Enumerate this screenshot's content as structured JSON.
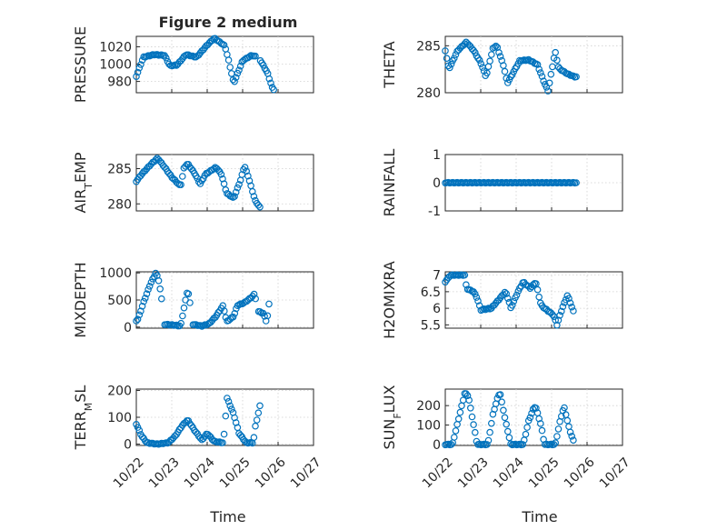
{
  "figure": {
    "title": "Figure 2 medium",
    "marker_color": "#0072bd",
    "marker": "open-circle"
  },
  "chart_data": [
    {
      "type": "scatter",
      "panel": "pressure",
      "title": "Figure 2 medium",
      "ylabel": "PRESSURE",
      "ylabel_parts": [
        {
          "t": "PRESSURE"
        }
      ],
      "ylim": [
        967,
        1032
      ],
      "yticks": [
        980,
        1000,
        1020
      ],
      "yticklabels": [
        "980",
        "1000",
        "1020"
      ],
      "xlim": [
        0,
        5
      ],
      "grid": true,
      "key": [
        [
          0,
          986
        ],
        [
          0.2,
          1008
        ],
        [
          0.5,
          1011
        ],
        [
          0.8,
          1010
        ],
        [
          0.95,
          998
        ],
        [
          1.15,
          999
        ],
        [
          1.4,
          1011
        ],
        [
          1.7,
          1008
        ],
        [
          2.0,
          1022
        ],
        [
          2.2,
          1030
        ],
        [
          2.5,
          1021
        ],
        [
          2.6,
          1005
        ],
        [
          2.75,
          978
        ],
        [
          3.0,
          1004
        ],
        [
          3.25,
          1010
        ],
        [
          3.45,
          1008
        ],
        [
          3.7,
          990
        ],
        [
          3.85,
          971
        ]
      ],
      "segments": [
        [
          0,
          3.4
        ],
        [
          3.5,
          3.9
        ]
      ],
      "step": 0.042,
      "x": [],
      "y": []
    },
    {
      "type": "scatter",
      "panel": "theta",
      "ylabel": "THETA",
      "ylabel_parts": [
        {
          "t": "THETA"
        }
      ],
      "ylim": [
        280,
        286
      ],
      "yticks": [
        280,
        285
      ],
      "yticklabels": [
        "280",
        "285"
      ],
      "xlim": [
        0,
        5
      ],
      "grid": true,
      "key": [
        [
          0,
          284.5
        ],
        [
          0.1,
          282.5
        ],
        [
          0.35,
          284.5
        ],
        [
          0.6,
          285.4
        ],
        [
          0.8,
          284.5
        ],
        [
          1.0,
          283.2
        ],
        [
          1.15,
          281.7
        ],
        [
          1.35,
          284.8
        ],
        [
          1.45,
          285
        ],
        [
          1.65,
          282.8
        ],
        [
          1.75,
          281
        ],
        [
          2.1,
          283.4
        ],
        [
          2.35,
          283.5
        ],
        [
          2.6,
          283
        ],
        [
          2.8,
          281
        ],
        [
          2.9,
          280.2
        ],
        [
          3.1,
          284.4
        ],
        [
          3.2,
          282.6
        ],
        [
          3.45,
          282
        ],
        [
          3.65,
          281.7
        ]
      ],
      "segments": [
        [
          0,
          3.7
        ]
      ],
      "step": 0.042,
      "x": [],
      "y": []
    },
    {
      "type": "scatter",
      "panel": "air_temp",
      "ylabel": "AIR_TEMP",
      "ylabel_parts": [
        {
          "t": "AIR"
        },
        {
          "t": "T",
          "sub": true
        },
        {
          "t": "EMP"
        }
      ],
      "ylim": [
        279,
        287
      ],
      "yticks": [
        280,
        285
      ],
      "yticklabels": [
        "280",
        "285"
      ],
      "xlim": [
        0,
        5
      ],
      "grid": true,
      "key": [
        [
          0,
          283.2
        ],
        [
          0.15,
          284.2
        ],
        [
          0.45,
          285.8
        ],
        [
          0.6,
          286.5
        ],
        [
          0.8,
          285.2
        ],
        [
          1.0,
          283.8
        ],
        [
          1.25,
          282.5
        ],
        [
          1.35,
          285.2
        ],
        [
          1.45,
          285.7
        ],
        [
          1.65,
          284.3
        ],
        [
          1.8,
          282.8
        ],
        [
          1.95,
          284.2
        ],
        [
          2.25,
          285.2
        ],
        [
          2.4,
          284.2
        ],
        [
          2.55,
          281.5
        ],
        [
          2.75,
          280.8
        ],
        [
          2.95,
          283.5
        ],
        [
          3.05,
          285.4
        ],
        [
          3.15,
          284
        ],
        [
          3.35,
          280.5
        ],
        [
          3.5,
          279.4
        ]
      ],
      "segments": [
        [
          0,
          3.5
        ]
      ],
      "step": 0.042,
      "x": [],
      "y": []
    },
    {
      "type": "scatter",
      "panel": "rainfall",
      "ylabel": "RAINFALL",
      "ylabel_parts": [
        {
          "t": "RAINFALL"
        }
      ],
      "ylim": [
        -1,
        1
      ],
      "yticks": [
        -1,
        0,
        1
      ],
      "yticklabels": [
        "-1",
        "0",
        "1"
      ],
      "xlim": [
        0,
        5
      ],
      "grid": true,
      "key": [
        [
          0,
          0
        ],
        [
          3.7,
          0
        ]
      ],
      "segments": [
        [
          0,
          3.7
        ]
      ],
      "step": 0.042,
      "x": [],
      "y": []
    },
    {
      "type": "scatter",
      "panel": "mixdepth",
      "ylabel": "MIXDEPTH",
      "ylabel_parts": [
        {
          "t": "MIXDEPTH"
        }
      ],
      "ylim": [
        -20,
        1020
      ],
      "yticks": [
        0,
        500,
        1000
      ],
      "yticklabels": [
        "0",
        "500",
        "1000"
      ],
      "xlim": [
        0,
        5
      ],
      "grid": true,
      "key": [
        [
          0,
          120
        ],
        [
          0.05,
          150
        ],
        [
          0.2,
          450
        ],
        [
          0.4,
          800
        ],
        [
          0.55,
          1000
        ],
        [
          0.62,
          900
        ],
        [
          0.7,
          600
        ],
        [
          0.75,
          300
        ],
        [
          0.8,
          50
        ],
        [
          1.0,
          40
        ],
        [
          1.15,
          30
        ],
        [
          1.25,
          20
        ],
        [
          1.3,
          200
        ],
        [
          1.45,
          700
        ],
        [
          1.55,
          300
        ],
        [
          1.6,
          50
        ],
        [
          1.85,
          20
        ],
        [
          2.05,
          60
        ],
        [
          2.25,
          200
        ],
        [
          2.45,
          400
        ],
        [
          2.55,
          100
        ],
        [
          2.75,
          200
        ],
        [
          2.85,
          400
        ],
        [
          3.05,
          450
        ],
        [
          3.25,
          550
        ],
        [
          3.35,
          620
        ],
        [
          3.4,
          300
        ],
        [
          3.6,
          250
        ],
        [
          3.65,
          100
        ],
        [
          3.7,
          200
        ],
        [
          3.75,
          450
        ]
      ],
      "segments": [
        [
          0,
          0.75
        ],
        [
          0.8,
          1.55
        ],
        [
          1.6,
          3.4
        ],
        [
          3.45,
          3.75
        ]
      ],
      "step": 0.042,
      "x": [],
      "y": []
    },
    {
      "type": "scatter",
      "panel": "h2omixra",
      "ylabel": "H2OMIXRA",
      "ylabel_parts": [
        {
          "t": "H2OMIXRA"
        }
      ],
      "ylim": [
        5.4,
        7.1
      ],
      "yticks": [
        5.5,
        6,
        6.5,
        7
      ],
      "yticklabels": [
        "5.5",
        "6",
        "6.5",
        "7"
      ],
      "xlim": [
        0,
        5
      ],
      "grid": true,
      "key": [
        [
          0,
          6.8
        ],
        [
          0.15,
          7.0
        ],
        [
          0.55,
          7.0
        ],
        [
          0.6,
          6.6
        ],
        [
          0.8,
          6.5
        ],
        [
          0.9,
          6.3
        ],
        [
          1.0,
          5.95
        ],
        [
          1.3,
          6.0
        ],
        [
          1.7,
          6.5
        ],
        [
          1.8,
          6.2
        ],
        [
          1.85,
          6.0
        ],
        [
          2.05,
          6.5
        ],
        [
          2.2,
          6.8
        ],
        [
          2.4,
          6.6
        ],
        [
          2.55,
          6.8
        ],
        [
          2.7,
          6.1
        ],
        [
          2.8,
          6.0
        ],
        [
          3.05,
          5.8
        ],
        [
          3.15,
          5.5
        ],
        [
          3.3,
          6.0
        ],
        [
          3.45,
          6.4
        ],
        [
          3.65,
          5.8
        ]
      ],
      "segments": [
        [
          0,
          3.65
        ]
      ],
      "step": 0.042,
      "x": [],
      "y": []
    },
    {
      "type": "scatter",
      "panel": "terr_msl",
      "ylabel": "TERR_MSL",
      "ylabel_parts": [
        {
          "t": "TERR"
        },
        {
          "t": "M",
          "sub": true
        },
        {
          "t": "SL"
        }
      ],
      "ylim": [
        -5,
        205
      ],
      "yticks": [
        0,
        100,
        200
      ],
      "yticklabels": [
        "0",
        "100",
        "200"
      ],
      "xlim": [
        0,
        5
      ],
      "grid": true,
      "key": [
        [
          0,
          75
        ],
        [
          0.15,
          30
        ],
        [
          0.3,
          5
        ],
        [
          0.6,
          0
        ],
        [
          0.9,
          5
        ],
        [
          1.1,
          30
        ],
        [
          1.3,
          70
        ],
        [
          1.45,
          90
        ],
        [
          1.65,
          50
        ],
        [
          1.85,
          15
        ],
        [
          2.0,
          40
        ],
        [
          2.2,
          10
        ],
        [
          2.45,
          5
        ],
        [
          2.5,
          60
        ],
        [
          2.55,
          175
        ],
        [
          2.75,
          110
        ],
        [
          2.9,
          40
        ],
        [
          3.1,
          5
        ],
        [
          3.3,
          5
        ],
        [
          3.35,
          60
        ],
        [
          3.5,
          150
        ]
      ],
      "segments": [
        [
          0,
          3.5
        ]
      ],
      "step": 0.042,
      "x": [],
      "y": []
    },
    {
      "type": "scatter",
      "panel": "sun_flux",
      "ylabel": "SUN_FLUX",
      "ylabel_parts": [
        {
          "t": "SUN"
        },
        {
          "t": "F",
          "sub": true
        },
        {
          "t": "LUX"
        }
      ],
      "ylim": [
        -5,
        285
      ],
      "yticks": [
        0,
        100,
        200
      ],
      "yticklabels": [
        "0",
        "100",
        "200"
      ],
      "xlim": [
        0,
        5
      ],
      "grid": true,
      "key": [
        [
          0,
          0
        ],
        [
          0.2,
          0
        ],
        [
          0.4,
          150
        ],
        [
          0.55,
          265
        ],
        [
          0.65,
          250
        ],
        [
          0.8,
          100
        ],
        [
          0.9,
          0
        ],
        [
          1.2,
          0
        ],
        [
          1.35,
          160
        ],
        [
          1.5,
          255
        ],
        [
          1.55,
          260
        ],
        [
          1.7,
          120
        ],
        [
          1.85,
          0
        ],
        [
          2.2,
          0
        ],
        [
          2.35,
          120
        ],
        [
          2.5,
          190
        ],
        [
          2.55,
          195
        ],
        [
          2.7,
          100
        ],
        [
          2.8,
          0
        ],
        [
          3.1,
          0
        ],
        [
          3.25,
          130
        ],
        [
          3.35,
          195
        ],
        [
          3.5,
          80
        ],
        [
          3.65,
          0
        ]
      ],
      "segments": [
        [
          0,
          3.65
        ]
      ],
      "step": 0.042,
      "x": [],
      "y": []
    }
  ],
  "shared_x": {
    "label": "Time",
    "ticks": [
      0,
      1,
      2,
      3,
      4,
      5
    ],
    "ticklabels": [
      "10/22",
      "10/23",
      "10/24",
      "10/25",
      "10/26",
      "10/27"
    ]
  }
}
